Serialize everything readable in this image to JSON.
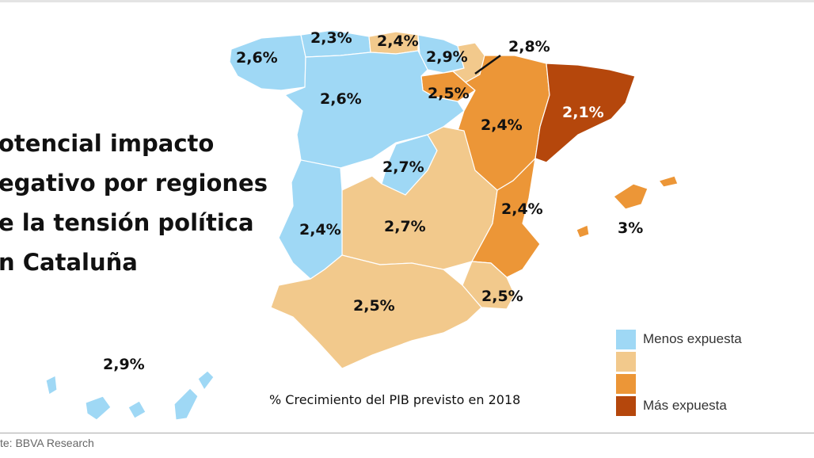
{
  "title_lines": [
    "otencial impacto",
    "egativo por regiones",
    "e la tensión política",
    "n Cataluña"
  ],
  "colors": {
    "menos": "#9fd8f5",
    "medio_bajo": "#f2c98c",
    "medio_alto": "#ec9637",
    "mas": "#b5470c"
  },
  "regions": [
    {
      "id": "galicia",
      "label": "2,6%",
      "class": "menos"
    },
    {
      "id": "asturias",
      "label": "2,3%",
      "class": "menos"
    },
    {
      "id": "cantabria",
      "label": "2,4%",
      "class": "medio_bajo"
    },
    {
      "id": "pais-vasco",
      "label": "2,9%",
      "class": "menos"
    },
    {
      "id": "navarra",
      "label": "2,8%",
      "class": "medio_bajo"
    },
    {
      "id": "la-rioja",
      "label": "2,5%",
      "class": "medio_alto"
    },
    {
      "id": "castilla-y-leon",
      "label": "2,6%",
      "class": "menos"
    },
    {
      "id": "aragon",
      "label": "2,4%",
      "class": "medio_alto"
    },
    {
      "id": "cataluna",
      "label": "2,1%",
      "class": "mas"
    },
    {
      "id": "madrid",
      "label": "2,7%",
      "class": "menos"
    },
    {
      "id": "castilla-la-mancha",
      "label": "2,7%",
      "class": "medio_bajo"
    },
    {
      "id": "comunidad-valenciana",
      "label": "2,4%",
      "class": "medio_alto"
    },
    {
      "id": "extremadura",
      "label": "2,4%",
      "class": "menos"
    },
    {
      "id": "baleares",
      "label": "3%",
      "class": "medio_alto"
    },
    {
      "id": "murcia",
      "label": "2,5%",
      "class": "medio_bajo"
    },
    {
      "id": "andalucia",
      "label": "2,5%",
      "class": "medio_bajo"
    },
    {
      "id": "canarias",
      "label": "2,9%",
      "class": "menos"
    }
  ],
  "legend": [
    {
      "label": "Menos expuesta",
      "color": "#9fd8f5"
    },
    {
      "label": "",
      "color": "#f2c98c"
    },
    {
      "label": "",
      "color": "#ec9637"
    },
    {
      "label": "Más expuesta",
      "color": "#b5470c"
    }
  ],
  "caption": "% Crecimiento del PIB previsto en 2018",
  "source": "te: BBVA Research"
}
